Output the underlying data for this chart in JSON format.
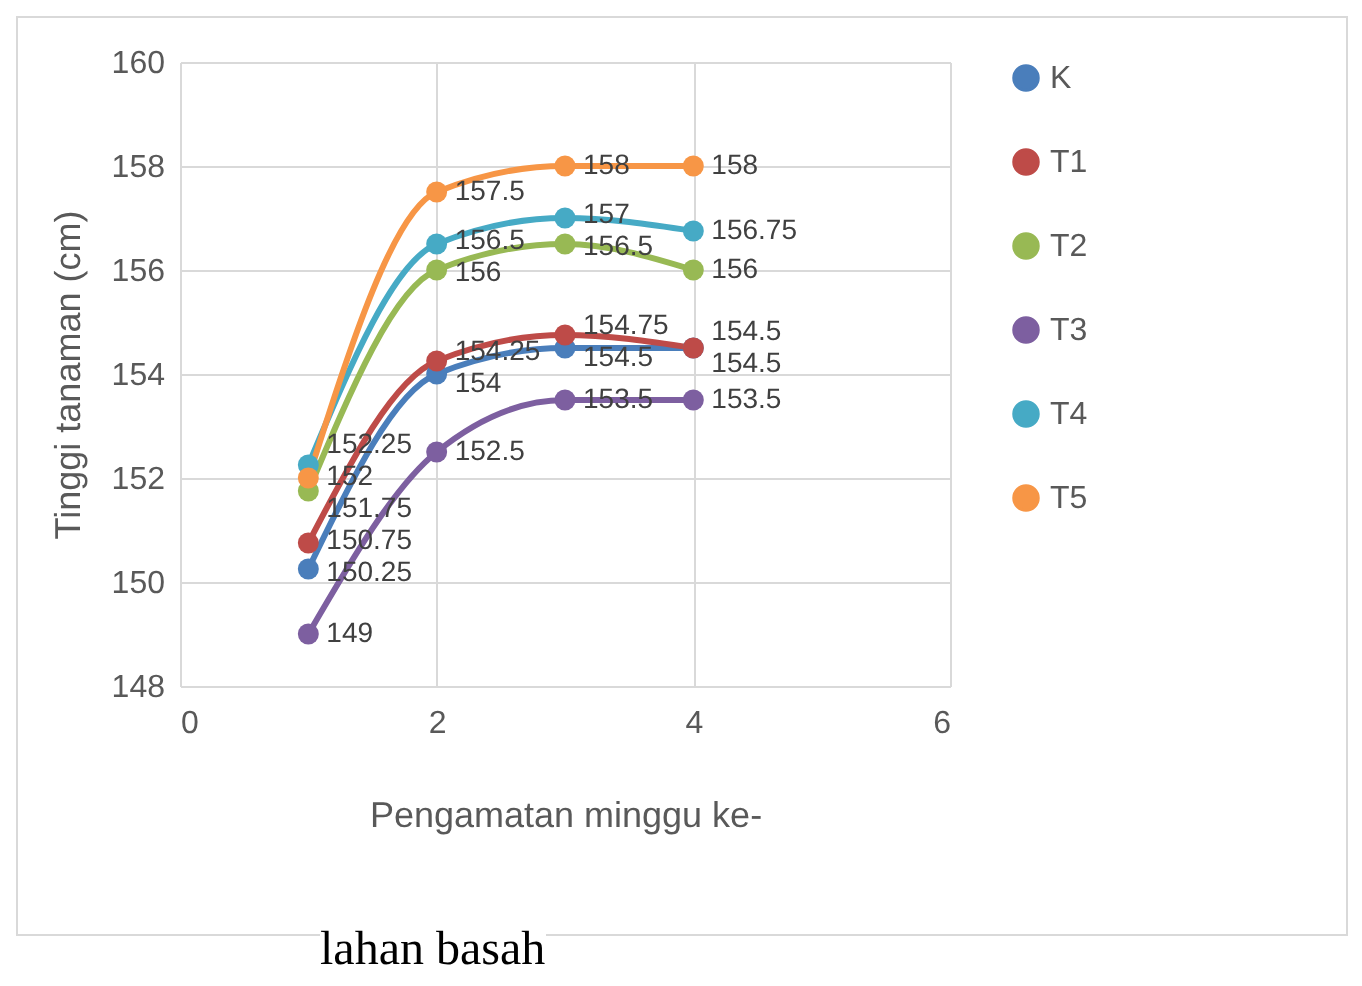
{
  "chart_data": {
    "type": "line",
    "xlabel": "Pengamatan minggu ke-",
    "ylabel": "Tinggi tanaman (cm)",
    "annotations": [
      "lahan basah"
    ],
    "x": [
      1,
      2,
      3,
      4
    ],
    "xlim": [
      0,
      6
    ],
    "xticks": [
      0,
      2,
      4,
      6
    ],
    "ylim": [
      148,
      160
    ],
    "yticks": [
      148,
      150,
      152,
      154,
      156,
      158,
      160
    ],
    "grid": true,
    "legend": "right",
    "marker": "circle",
    "data_labels": true,
    "series": [
      {
        "name": "K",
        "color": "#4a7ebb",
        "values": [
          150.25,
          154,
          154.5,
          154.5
        ]
      },
      {
        "name": "T1",
        "color": "#be4b48",
        "values": [
          150.75,
          154.25,
          154.75,
          154.5
        ]
      },
      {
        "name": "T2",
        "color": "#98b954",
        "values": [
          151.75,
          156,
          156.5,
          156
        ]
      },
      {
        "name": "T3",
        "color": "#7d5fa0",
        "values": [
          149,
          152.5,
          153.5,
          153.5
        ]
      },
      {
        "name": "T4",
        "color": "#46aac5",
        "values": [
          152.25,
          156.5,
          157,
          156.75
        ]
      },
      {
        "name": "T5",
        "color": "#f79646",
        "values": [
          152,
          157.5,
          158,
          158
        ]
      }
    ]
  }
}
